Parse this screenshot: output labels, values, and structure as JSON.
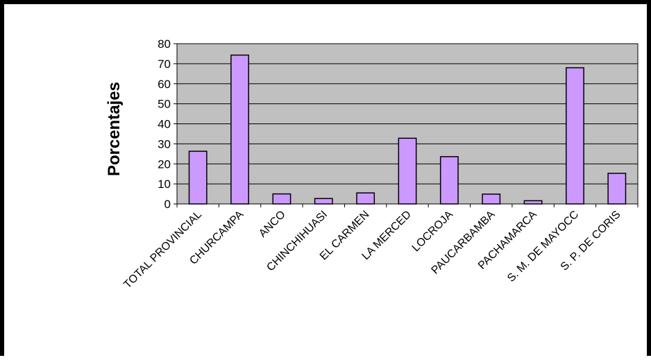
{
  "chart_data": {
    "type": "bar",
    "title": "",
    "xlabel": "",
    "ylabel": "Porcentajes",
    "ylim": [
      0,
      80
    ],
    "yticks": [
      "0",
      "10",
      "20",
      "30",
      "40",
      "50",
      "60",
      "70",
      "80"
    ],
    "grid": true,
    "legend": "none",
    "categories": [
      "TOTAL PROVINCIAL",
      "CHURCAMPA",
      "ANCO",
      "CHINCHIHUASI",
      "EL CARMEN",
      "LA MERCED",
      "LOCROJA",
      "PAUCARBAMBA",
      "PACHAMARCA",
      "S. M. DE MAYOCC",
      "S. P. DE CORIS"
    ],
    "values": [
      26.3,
      74.3,
      5.0,
      2.7,
      5.5,
      32.8,
      23.6,
      4.9,
      1.6,
      68.0,
      15.3
    ],
    "colors": {
      "bar": "#cc99ff",
      "plot_background": "#c0c0c0",
      "gridline": "#000000",
      "border": "#000000"
    }
  }
}
